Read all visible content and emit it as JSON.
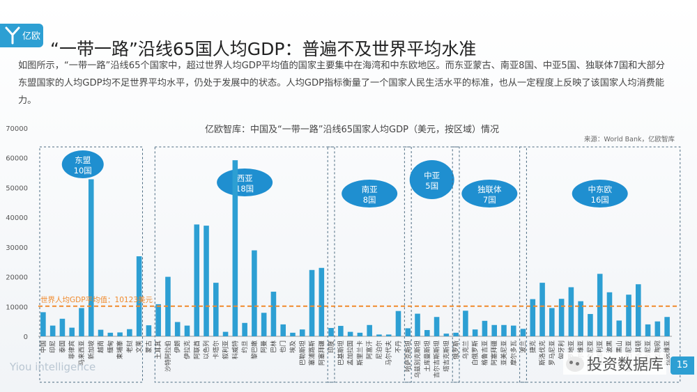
{
  "header": {
    "logo_text": "亿欧",
    "title": "“一带一路”沿线65国人均GDP：普遍不及世界平均水准"
  },
  "intro": "如图所示，“一带一路”沿线65个国家中，超过世界人均GDP平均值的国家主要集中在海湾和中东欧地区。而东亚蒙古、南亚8国、中亚5国、独联体7国和大部分东盟国家的人均GDP均不足世界平均水平，仍处于发展中的状态。人均GDP指标衡量了一个国家人民生活水平的标准，也从一定程度上反映了该国家人均消费能力。",
  "footer": {
    "brand": "Yiou intelligence",
    "watermark": "投资数据库",
    "page": "15"
  },
  "colors": {
    "accent": "#2d9fd3",
    "bar": "#2d9fd3",
    "reference": "#f08a2c",
    "region_border": "#4a6a80",
    "bubble": "#1f8fd0"
  },
  "chart_data": {
    "type": "bar",
    "title": "亿欧智库：中国及“一带一路”沿线65国家人均GDP（美元，按区域）情况",
    "source": "来源：World Bank，亿欧智库",
    "ylim": [
      0,
      70000
    ],
    "yticks": [
      "0",
      "10000",
      "20000",
      "30000",
      "40000",
      "50000",
      "60000",
      "70000"
    ],
    "reference_line": {
      "value": 10123,
      "label": "世界人均GDP平均值：10123美元"
    },
    "regions": [
      {
        "name": "东盟",
        "count": "10国",
        "start": 1,
        "end": 10
      },
      {
        "name": "西亚",
        "count": "18国",
        "start": 13,
        "end": 30
      },
      {
        "name": "南亚",
        "count": "8国",
        "start": 31,
        "end": 38
      },
      {
        "name": "中亚",
        "count": "5国",
        "start": 39,
        "end": 43
      },
      {
        "name": "独联体",
        "count": "7国",
        "start": 44,
        "end": 50
      },
      {
        "name": "中东欧",
        "count": "16国",
        "start": 51,
        "end": 66
      }
    ],
    "categories": [
      "中国",
      "印尼",
      "泰国",
      "菲律宾",
      "马来西亚",
      "新加坡",
      "越南",
      "缅甸",
      "柬埔寨",
      "老挝",
      "文莱",
      "蒙古",
      "土耳其",
      "沙特阿拉伯",
      "伊朗",
      "伊拉克",
      "阿联酋",
      "以色列",
      "卡塔尔",
      "叙利亚",
      "科威特",
      "约旦",
      "黎巴嫩",
      "阿曼",
      "巴林",
      "也门",
      "埃及",
      "巴勒斯坦",
      "塞浦路斯",
      "阿塞拜疆",
      "印度",
      "巴基斯坦",
      "孟加拉国",
      "斯里兰卡",
      "阿富汗",
      "尼泊尔",
      "马尔代夫",
      "不丹",
      "哈萨克斯坦",
      "乌兹别克斯坦",
      "土库曼斯坦",
      "吉尔吉斯斯坦",
      "塔吉克斯坦",
      "俄罗斯",
      "乌克兰",
      "白俄罗斯",
      "格鲁吉亚",
      "阿塞拜疆",
      "亚美尼亚",
      "摩尔多瓦",
      "波兰",
      "捷克",
      "斯洛伐克",
      "罗马尼亚",
      "匈牙利",
      "克罗地亚",
      "塞尔维亚",
      "斯洛文尼亚",
      "保加利亚",
      "波黑",
      "黑山",
      "阿尔巴尼亚",
      "马其顿",
      "爱沙尼亚",
      "立陶宛",
      "拉脱维亚"
    ],
    "values": [
      8100,
      3600,
      5900,
      2900,
      9500,
      52800,
      2200,
      1200,
      1300,
      2400,
      26900,
      3700,
      10800,
      20000,
      4800,
      3600,
      37600,
      37200,
      18000,
      1500,
      59200,
      4500,
      28900,
      7900,
      15000,
      4000,
      1200,
      2300,
      22300,
      23000,
      2800,
      3500,
      1500,
      1200,
      3800,
      600,
      600,
      8500,
      2700,
      7600,
      2100,
      6500,
      900,
      1200,
      8600,
      2300,
      5200,
      3800,
      3800,
      3600,
      2500,
      12500,
      18000,
      9500,
      12600,
      16500,
      11800,
      7500,
      21000,
      14800,
      5300,
      14000,
      17500,
      4000,
      5000,
      6500
    ]
  }
}
